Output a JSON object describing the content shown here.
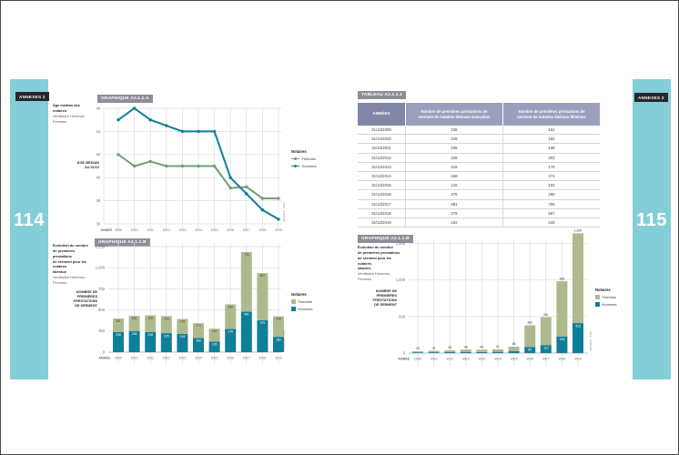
{
  "left_page": {
    "tab": "ANNEXES 2",
    "page_number": "114"
  },
  "right_page": {
    "tab": "ANNEXES 2",
    "page_number": "115"
  },
  "palette": {
    "teal": "#85ced8",
    "tab_bg": "#26262e",
    "chip_bg": "#8e8e99",
    "blue": "#0f7e99",
    "green_line": "#70a077",
    "green_bar": "#aeba8e",
    "grid": "#dddddd",
    "tick": "#6b6b6b",
    "text_dark": "#3b3b3b",
    "table_col1_bg": "#8287a8",
    "table_col_bg": "#9aa0bc"
  },
  "chart_data": [
    {
      "type": "line",
      "title": "GRAPHIQUE A2.1.1.A",
      "caption": [
        "Âge médian des notaires",
        "Ventilation Hommes-Femmes"
      ],
      "ylabel_lines": [
        "ÂGE MÉDIAN",
        "AU 31/12"
      ],
      "xlabel": "ANNÉE",
      "legend_title": "Notaires",
      "categories": [
        "2009",
        "2010",
        "2011",
        "2012",
        "2013",
        "2014",
        "2015",
        "2016",
        "2017",
        "2018",
        "2019"
      ],
      "yticks": [
        36,
        38,
        40,
        42,
        44,
        46
      ],
      "ylim": [
        36,
        47
      ],
      "grid": true,
      "legend_position": "right",
      "series": [
        {
          "name": "Femmes",
          "color_key": "green_line",
          "values": [
            42,
            41,
            41.4,
            41,
            41,
            41,
            41,
            39.1,
            39.2,
            38.2,
            38.2
          ]
        },
        {
          "name": "Hommes",
          "color_key": "blue",
          "values": [
            45,
            46,
            45,
            44.5,
            44,
            44,
            44,
            40,
            38.6,
            37.2,
            36.4
          ]
        }
      ],
      "source": "SOURCE : CSN"
    },
    {
      "type": "bar",
      "title": "GRAPHIQUE A2.1.1.B",
      "caption": [
        "Évolution du nombre",
        "de premières prestations",
        "de serment pour les notaires",
        "libéraux",
        "Ventilation Hommes-Femmes"
      ],
      "ylabel_lines": [
        "NOMBRE DE",
        "PREMIÈRES",
        "PRESTATIONS",
        "DE SERMENT"
      ],
      "xlabel": "ANNÉE",
      "legend_title": "Notaires",
      "categories": [
        "2009",
        "2010",
        "2011",
        "2012",
        "2013",
        "2014",
        "2015",
        "2016",
        "2017",
        "2018",
        "2019"
      ],
      "yticks": [
        0,
        250,
        500,
        750,
        1000,
        1250
      ],
      "ytick_labels": [
        "0",
        "250",
        "500",
        "750",
        "1,000",
        "1,250"
      ],
      "ylim": [
        0,
        1250
      ],
      "grid": true,
      "legend_position": "right",
      "stacked": true,
      "label_mode": "segments",
      "series": [
        {
          "name": "Femmes",
          "color_key": "green_bar",
          "values": [
            161,
            182,
            198,
            203,
            178,
            174,
            152,
            290,
            705,
            557,
            243
          ]
        },
        {
          "name": "Hommes",
          "color_key": "blue",
          "values": [
            238,
            248,
            238,
            225,
            216,
            169,
            126,
            276,
            481,
            379,
            182
          ]
        }
      ],
      "source": "SOURCE : CSN"
    },
    {
      "type": "table",
      "title": "TABLEAU A2.1.1.1",
      "columns": [
        "ANNÉES",
        "Nombre de premières prestations de serment de notaires libéraux masculins",
        "Nombre de premières prestations de serment de notaires libéraux féminins"
      ],
      "rows": [
        [
          "31/12/2009",
          "238",
          "161"
        ],
        [
          "31/12/2010",
          "248",
          "182"
        ],
        [
          "31/12/2011",
          "238",
          "198"
        ],
        [
          "31/12/2012",
          "225",
          "203"
        ],
        [
          "31/12/2013",
          "216",
          "178"
        ],
        [
          "31/12/2014",
          "169",
          "174"
        ],
        [
          "31/12/2015",
          "126",
          "152"
        ],
        [
          "31/12/2016",
          "276",
          "290"
        ],
        [
          "31/12/2017",
          "481",
          "705"
        ],
        [
          "31/12/2018",
          "379",
          "557"
        ],
        [
          "31/12/2019",
          "182",
          "243"
        ]
      ]
    },
    {
      "type": "bar",
      "title": "GRAPHIQUE A2.1.1.B",
      "caption": [
        "Évolution du nombre",
        "de premières prestations",
        "de serment pour les notaires",
        "salariés",
        "Ventilation Hommes-Femmes"
      ],
      "ylabel_lines": [
        "NOMBRE DE",
        "PREMIÈRES",
        "PRESTATIONS",
        "DE SERMENT"
      ],
      "xlabel": "ANNÉE",
      "legend_title": "Notaires",
      "categories": [
        "2009",
        "2010",
        "2011",
        "2012",
        "2013",
        "2014",
        "2015",
        "2016",
        "2017",
        "2018",
        "2019"
      ],
      "yticks": [
        0,
        500,
        1000,
        1500
      ],
      "ytick_labels": [
        "0",
        "500",
        "1,000",
        "1,500"
      ],
      "ylim": [
        0,
        1680
      ],
      "grid": true,
      "legend_position": "right",
      "stacked": true,
      "label_mode": "totals",
      "totals_labels": [
        "25",
        "31",
        "38",
        "48",
        "46",
        "51",
        "88",
        "380",
        "491",
        "983",
        "1,639"
      ],
      "series": [
        {
          "name": "Femmes",
          "color_key": "green_bar",
          "values": [
            15,
            20,
            25,
            32,
            31,
            34,
            60,
            295,
            381,
            755,
            1229
          ]
        },
        {
          "name": "Hommes",
          "color_key": "blue",
          "values": [
            10,
            11,
            13,
            16,
            15,
            17,
            28,
            85,
            110,
            228,
            410
          ]
        }
      ],
      "source": "SOURCE : CSN"
    }
  ]
}
